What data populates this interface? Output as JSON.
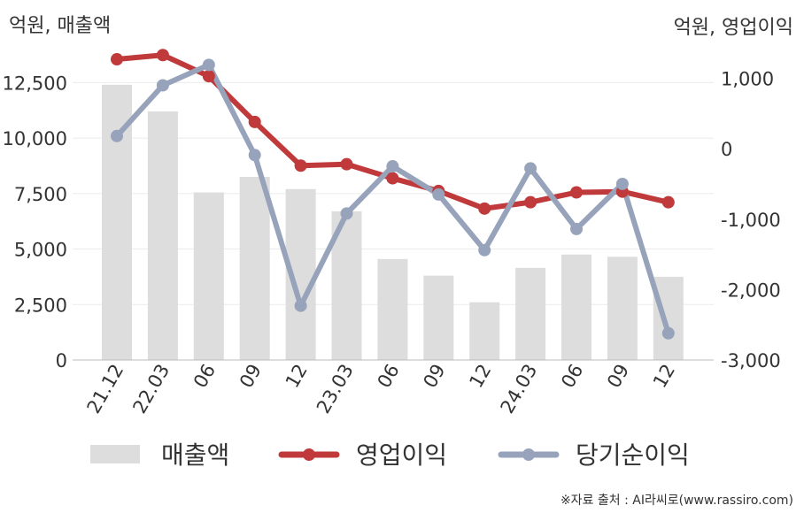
{
  "chart_data": {
    "type": "bar",
    "categories": [
      "21.12",
      "22.03",
      "06",
      "09",
      "12",
      "23.03",
      "06",
      "09",
      "12",
      "24.03",
      "06",
      "09",
      "12"
    ],
    "left_axis_title": "억원, 매출액",
    "right_axis_title": "억원, 영업이익",
    "left_ylim": [
      0,
      13750
    ],
    "right_ylim": [
      -3000,
      1333
    ],
    "left_ticks": [
      "0",
      "2,500",
      "5,000",
      "7,500",
      "10,000",
      "12,500"
    ],
    "right_ticks": [
      "-3,000",
      "-2,000",
      "-1,000",
      "0",
      "1,000"
    ],
    "series": [
      {
        "name": "매출액",
        "kind": "bar",
        "axis": "left",
        "color": "#dddddd",
        "values": [
          12400,
          11200,
          7550,
          8250,
          7700,
          6700,
          4550,
          3800,
          2600,
          4150,
          4750,
          4650,
          3750
        ]
      },
      {
        "name": "영업이익",
        "kind": "line",
        "axis": "right",
        "color": "#c0393b",
        "values": [
          1270,
          1330,
          1030,
          380,
          -240,
          -220,
          -420,
          -600,
          -850,
          -760,
          -620,
          -610,
          -760
        ]
      },
      {
        "name": "당기순이익",
        "kind": "line",
        "axis": "right",
        "color": "#97a3bb",
        "values": [
          180,
          900,
          1190,
          -90,
          -2230,
          -920,
          -250,
          -650,
          -1440,
          -280,
          -1140,
          -500,
          -2620
        ]
      }
    ],
    "grid": true,
    "legend_position": "bottom"
  },
  "source_text": "※자료 출처 : AI라씨로(www.rassiro.com)"
}
